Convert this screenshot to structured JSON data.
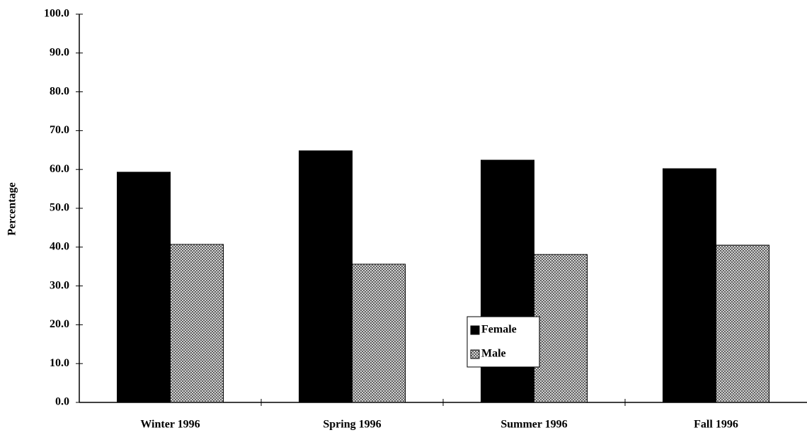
{
  "chart_data": {
    "type": "bar",
    "y_label": "Percentage",
    "categories": [
      "Winter 1996",
      "Spring 1996",
      "Summer 1996",
      "Fall 1996"
    ],
    "series": [
      {
        "name": "Female",
        "color": "#000000",
        "values": [
          59.3,
          64.8,
          62.4,
          60.2
        ]
      },
      {
        "name": "Male",
        "color": "#a8a8a8",
        "values": [
          40.7,
          35.6,
          38.1,
          40.5
        ]
      }
    ],
    "ylim": [
      0,
      100
    ],
    "yticks": [
      {
        "value": 0,
        "label": "0.0"
      },
      {
        "value": 10,
        "label": "10.0"
      },
      {
        "value": 20,
        "label": "20.0"
      },
      {
        "value": 30,
        "label": "30.0"
      },
      {
        "value": 40,
        "label": "40.0"
      },
      {
        "value": 50,
        "label": "50.0"
      },
      {
        "value": 60,
        "label": "60.0"
      },
      {
        "value": 70,
        "label": "70.0"
      },
      {
        "value": 80,
        "label": "80.0"
      },
      {
        "value": 90,
        "label": "90.0"
      },
      {
        "value": 100,
        "label": "100.0"
      }
    ],
    "grid": false
  }
}
